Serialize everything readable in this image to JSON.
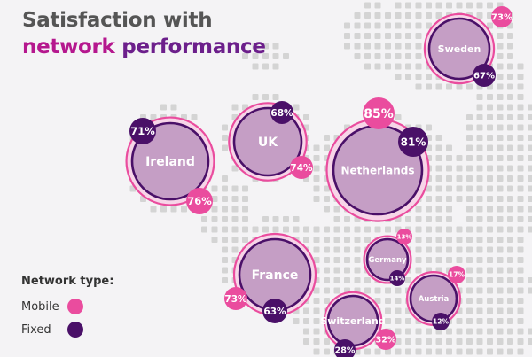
{
  "title": {
    "line1": "Satisfaction with",
    "line2_word1": "network",
    "line2_word2": "performance"
  },
  "legend": {
    "title": "Network type:",
    "items": [
      {
        "label": "Mobile",
        "color": "#ea4c9e"
      },
      {
        "label": "Fixed",
        "color": "#4a1068"
      }
    ]
  },
  "colors": {
    "mobile": "#ea4c9e",
    "fixed": "#4a1068",
    "bubble_fill": "#c59ec5",
    "halo": "#f7d5e8",
    "map_dot": "#d4d4d4",
    "background": "#f4f3f5"
  },
  "chart_data": {
    "type": "bubble-map",
    "title": "Satisfaction with network performance",
    "legend": [
      "Mobile",
      "Fixed"
    ],
    "unit": "%",
    "countries": [
      {
        "name": "Sweden",
        "mobile": 73,
        "fixed": 67
      },
      {
        "name": "Ireland",
        "mobile": 76,
        "fixed": 71
      },
      {
        "name": "UK",
        "mobile": 74,
        "fixed": 68
      },
      {
        "name": "Netherlands",
        "mobile": 85,
        "fixed": 81
      },
      {
        "name": "France",
        "mobile": 73,
        "fixed": 63
      },
      {
        "name": "Germany",
        "mobile": 13,
        "fixed": 14
      },
      {
        "name": "Austria",
        "mobile": 17,
        "fixed": 12
      },
      {
        "name": "Switzerland",
        "mobile": 32,
        "fixed": 28
      }
    ]
  }
}
